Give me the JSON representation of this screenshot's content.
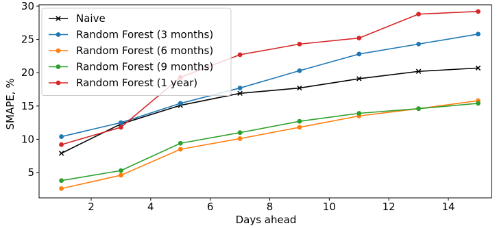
{
  "chart_data": {
    "type": "line",
    "xlabel": "Days ahead",
    "ylabel": "SMAPE, %",
    "xlim": [
      0.25,
      15.45
    ],
    "ylim": [
      1.2,
      30.2
    ],
    "xticks": [
      2,
      4,
      6,
      8,
      10,
      12,
      14
    ],
    "yticks": [
      5,
      10,
      15,
      20,
      25,
      30
    ],
    "grid": false,
    "legend_position": "upper-left",
    "x": [
      1,
      3,
      5,
      7,
      9,
      11,
      13,
      15
    ],
    "series": [
      {
        "name": "Naive",
        "color": "#000000",
        "marker": "x",
        "values": [
          7.9,
          12.3,
          15.1,
          16.9,
          17.7,
          19.1,
          20.2,
          20.7
        ]
      },
      {
        "name": "Random Forest (3 months)",
        "color": "#1f77b4",
        "marker": "o",
        "values": [
          10.4,
          12.5,
          15.4,
          17.7,
          20.3,
          22.8,
          24.3,
          25.8
        ]
      },
      {
        "name": "Random Forest (6 months)",
        "color": "#ff7f0e",
        "marker": "o",
        "values": [
          2.6,
          4.6,
          8.5,
          10.1,
          11.8,
          13.5,
          14.6,
          15.8
        ]
      },
      {
        "name": "Random Forest (9 months)",
        "color": "#2ca02c",
        "marker": "o",
        "values": [
          3.8,
          5.3,
          9.4,
          11.0,
          12.7,
          13.9,
          14.6,
          15.4
        ]
      },
      {
        "name": "Random Forest (1 year)",
        "color": "#d62728",
        "marker": "o",
        "values": [
          9.2,
          11.8,
          19.3,
          22.7,
          24.3,
          25.2,
          28.8,
          29.2
        ]
      }
    ]
  }
}
